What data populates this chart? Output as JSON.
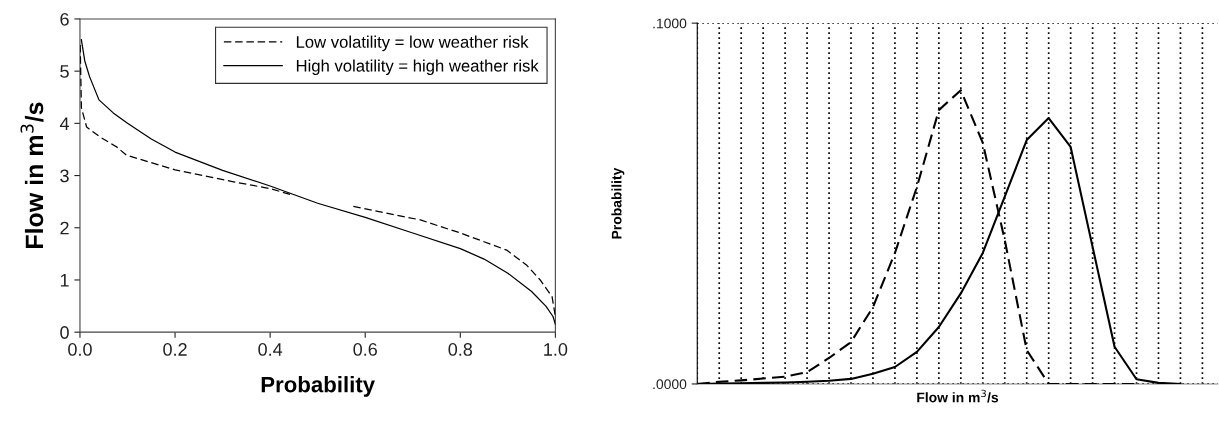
{
  "chart_data": [
    {
      "type": "line",
      "xlabel": "Probability",
      "ylabel": "Flow in m$^{3}$/s",
      "xlim": [
        0,
        1
      ],
      "ylim": [
        0,
        6
      ],
      "xticks": [
        {
          "value": 0,
          "label": "0.0"
        },
        {
          "value": 0.2,
          "label": "0.2"
        },
        {
          "value": 0.4,
          "label": "0.4"
        },
        {
          "value": 0.6,
          "label": "0.6"
        },
        {
          "value": 0.8,
          "label": "0.8"
        },
        {
          "value": 1,
          "label": "1.0"
        }
      ],
      "yticks": [
        0,
        1,
        2,
        3,
        4,
        5,
        6
      ],
      "legend": "top right",
      "grid": false,
      "series": [
        {
          "name": "Low volatility = low weather risk",
          "color": "#000000",
          "line_style": "dashed",
          "x": [
            0.0005,
            0.003,
            0.014,
            0.042,
            0.077,
            0.098,
            0.2,
            0.323,
            0.4,
            0.449,
            0.5,
            0.575,
            0.716,
            0.8,
            0.898,
            0.94,
            0.968,
            0.993,
            1.0
          ],
          "values": [
            5.5,
            4.3,
            3.93,
            3.74,
            3.55,
            3.39,
            3.11,
            2.88,
            2.75,
            2.62,
            null,
            2.41,
            2.15,
            1.9,
            1.57,
            1.28,
            1.0,
            0.68,
            0.3
          ]
        },
        {
          "name": "High volatility = high weather risk",
          "color": "#000000",
          "line_style": "solid",
          "x": [
            0.003,
            0.01,
            0.02,
            0.04,
            0.07,
            0.1,
            0.15,
            0.2,
            0.3,
            0.4,
            0.5,
            0.6,
            0.7,
            0.8,
            0.85,
            0.9,
            0.95,
            0.98,
            0.995,
            1.0
          ],
          "values": [
            5.6,
            5.2,
            4.9,
            4.45,
            4.2,
            4.0,
            3.7,
            3.45,
            3.1,
            2.8,
            2.47,
            2.2,
            1.9,
            1.6,
            1.4,
            1.13,
            0.78,
            0.5,
            0.3,
            0.15
          ]
        }
      ]
    },
    {
      "type": "line",
      "xlabel": "Flow in m$^{3}$/s",
      "ylabel": "Probability",
      "ylim": [
        0,
        0.1
      ],
      "yticks": [
        {
          "value": 0,
          "label": ".0000"
        },
        {
          "value": 0.1,
          "label": ".1000"
        }
      ],
      "grid": true,
      "tick_labels": "y",
      "categories": [
        null,
        null,
        null,
        null,
        null,
        null,
        null,
        null,
        null,
        null,
        null,
        null,
        null,
        null,
        null,
        null,
        null,
        null,
        null,
        null,
        null,
        null,
        null,
        null
      ],
      "series": [
        {
          "color": "#000000",
          "line_style": "dashed",
          "values": [
            0,
            0.0006,
            0.001,
            0.0015,
            0.002,
            0.0033,
            0.0072,
            0.0116,
            0.0213,
            0.0363,
            0.0546,
            0.0759,
            0.0814,
            0.0668,
            0.0399,
            0.0094,
            0,
            0,
            0,
            0,
            0,
            null,
            null,
            null
          ]
        },
        {
          "color": "#000000",
          "line_style": "solid",
          "values": [
            0,
            0.0001,
            0.0002,
            0.0003,
            0.0004,
            0.0006,
            0.0009,
            0.0014,
            0.0028,
            0.0047,
            0.0089,
            0.0158,
            0.0251,
            0.0363,
            0.0519,
            0.0676,
            0.0737,
            0.0657,
            0.038,
            0.0103,
            0.0013,
            0.0003,
            0,
            null
          ]
        }
      ]
    }
  ]
}
